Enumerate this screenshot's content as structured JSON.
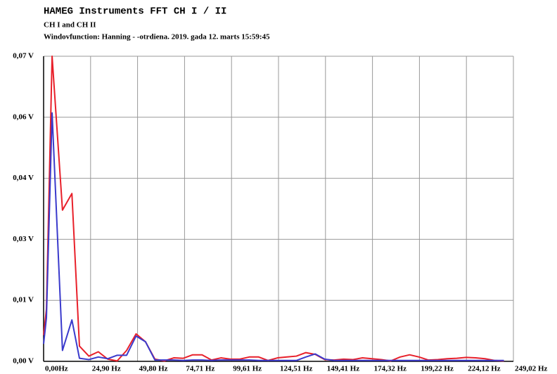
{
  "chart_data": {
    "type": "line",
    "title": "HAMEG Instruments FFT CH I / II",
    "subtitle": "CH I and CH II",
    "annotation": "Windovfunction:  Hanning - -otrdiena. 2019. gada 12. marts 15:59:45",
    "x": [
      0,
      1.5,
      4.5,
      10,
      15,
      19,
      24,
      29,
      34,
      39,
      44,
      49,
      54,
      59,
      64,
      69,
      74,
      79,
      84,
      89,
      94,
      99,
      104,
      109,
      114,
      119,
      124,
      129,
      134,
      139,
      144,
      149,
      154,
      159,
      164,
      169,
      174,
      179,
      184,
      189,
      194,
      199,
      204,
      209,
      214,
      219,
      224,
      229,
      234,
      239,
      244
    ],
    "series": [
      {
        "name": "CH I",
        "color": "#e8202a",
        "values": [
          0.006,
          0.012,
          0.07,
          0.0347,
          0.0385,
          0.0035,
          0.0012,
          0.0022,
          0.0005,
          0.0001,
          0.0025,
          0.0063,
          0.0045,
          0.0005,
          0.0001,
          0.0008,
          0.0007,
          0.0015,
          0.0015,
          0.0003,
          0.0008,
          0.0005,
          0.0005,
          0.001,
          0.001,
          0.0002,
          0.0008,
          0.001,
          0.0012,
          0.002,
          0.0016,
          0.0004,
          0.0003,
          0.0005,
          0.0004,
          0.0008,
          0.0006,
          0.0004,
          0.0001,
          0.001,
          0.0015,
          0.001,
          0.0003,
          0.0004,
          0.0006,
          0.0007,
          0.0009,
          0.0008,
          0.0006,
          0.0002,
          0.0001
        ]
      },
      {
        "name": "CH II",
        "color": "#3a3acc",
        "values": [
          0.004,
          0.01,
          0.057,
          0.0025,
          0.0095,
          0.0007,
          0.0004,
          0.001,
          0.0006,
          0.0014,
          0.0014,
          0.0058,
          0.0045,
          0.0003,
          0.0003,
          0.0003,
          0.0002,
          0.0003,
          0.0003,
          0.0002,
          0.0003,
          0.0003,
          0.0003,
          0.0003,
          0.0002,
          0.0002,
          0.0002,
          0.0002,
          0.0002,
          0.001,
          0.0017,
          0.0005,
          0.0002,
          0.0002,
          0.0002,
          0.0002,
          0.0002,
          0.0002,
          0.0002,
          0.0002,
          0.0002,
          0.0002,
          0.0002,
          0.0002,
          0.0002,
          0.0002,
          0.0002,
          0.0002,
          0.0002,
          0.0002,
          0.0002
        ]
      }
    ],
    "xlim": [
      0,
      249.02
    ],
    "xticks": [
      {
        "value": 0,
        "label": "0,00Hz"
      },
      {
        "value": 24.9,
        "label": "24,90 Hz"
      },
      {
        "value": 49.8,
        "label": "49,80 Hz"
      },
      {
        "value": 74.71,
        "label": "74,71 Hz"
      },
      {
        "value": 99.61,
        "label": "99,61 Hz"
      },
      {
        "value": 124.51,
        "label": "124,51 Hz"
      },
      {
        "value": 149.41,
        "label": "149,41 Hz"
      },
      {
        "value": 174.32,
        "label": "174,32 Hz"
      },
      {
        "value": 199.22,
        "label": "199,22 Hz"
      },
      {
        "value": 224.12,
        "label": "224,12 Hz"
      },
      {
        "value": 249.02,
        "label": "249,02 Hz"
      }
    ],
    "ylim": [
      0,
      0.07
    ],
    "yticks": [
      {
        "value": 0,
        "label": "0,00 V"
      },
      {
        "value": 0.014,
        "label": "0,01 V"
      },
      {
        "value": 0.028,
        "label": "0,03 V"
      },
      {
        "value": 0.042,
        "label": "0,04 V"
      },
      {
        "value": 0.056,
        "label": "0,06 V"
      },
      {
        "value": 0.07,
        "label": "0,07 V"
      }
    ],
    "grid": true
  }
}
